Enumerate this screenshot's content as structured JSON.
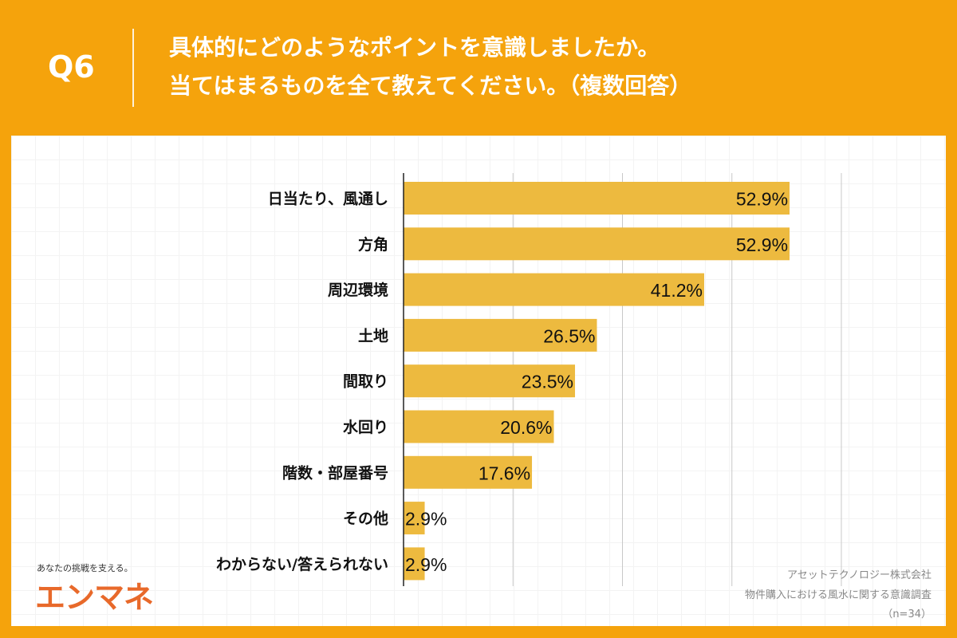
{
  "header": {
    "q": "Q6",
    "title_lines": [
      "具体的にどのようなポイントを意識しましたか。",
      "当てはまるものを全て教えてください。（複数回答）"
    ]
  },
  "colors": {
    "background": "#F5A30C",
    "bar": "#EDBA3F",
    "logo": "#E8692A"
  },
  "branding": {
    "tagline": "あなたの挑戦を支える。",
    "logo": "エンマネ"
  },
  "source": {
    "company": "アセットテクノロジー株式会社",
    "survey": "物件購入における風水に関する意識調査",
    "n": "（n=34）"
  },
  "chart_data": {
    "type": "bar",
    "orientation": "horizontal",
    "categories": [
      "日当たり、風通し",
      "方角",
      "周辺環境",
      "土地",
      "間取り",
      "水回り",
      "階数・部屋番号",
      "その他",
      "わからない/答えられない"
    ],
    "values": [
      52.9,
      52.9,
      41.2,
      26.5,
      23.5,
      20.6,
      17.6,
      2.9,
      2.9
    ],
    "data_labels": [
      "52.9%",
      "52.9%",
      "41.2%",
      "26.5%",
      "23.5%",
      "20.6%",
      "17.6%",
      "2.9%",
      "2.9%"
    ],
    "xlim": [
      0,
      60
    ],
    "grid": true,
    "grid_step": 15
  }
}
